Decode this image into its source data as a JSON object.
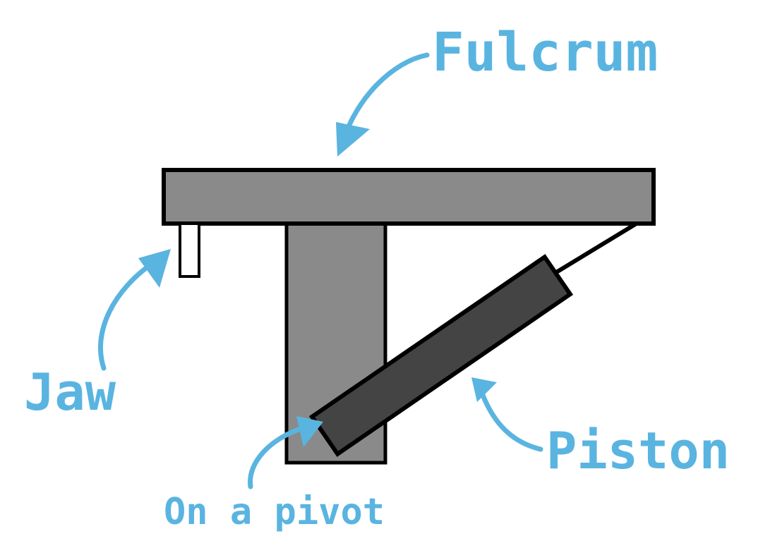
{
  "labels": {
    "fulcrum": "Fulcrum",
    "jaw": "Jaw",
    "piston": "Piston",
    "pivot": "On a pivot"
  },
  "colors": {
    "annotation": "#5ab4e0",
    "beam": "#8a8a8a",
    "piston_body": "#444444",
    "outline": "#000000",
    "jaw_fill": "#ffffff"
  }
}
